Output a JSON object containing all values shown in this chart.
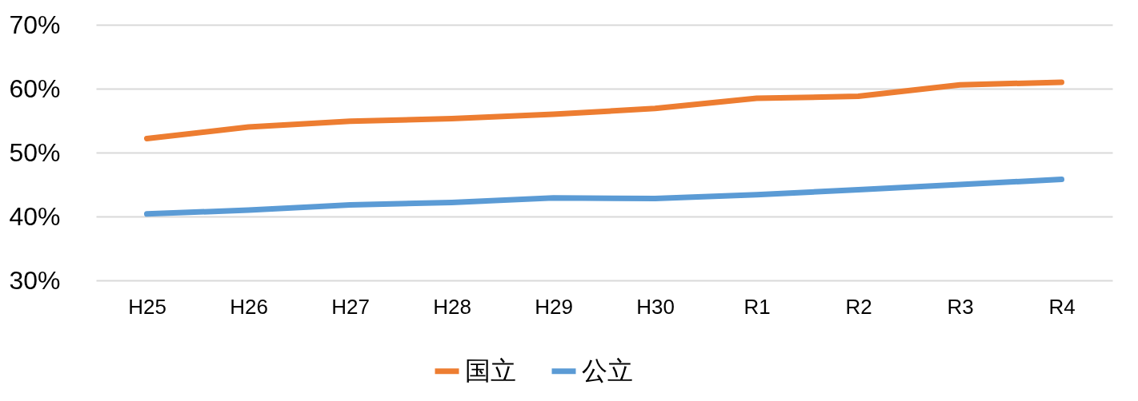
{
  "chart_data": {
    "type": "line",
    "categories": [
      "H25",
      "H26",
      "H27",
      "H28",
      "H29",
      "H30",
      "R1",
      "R2",
      "R3",
      "R4"
    ],
    "series": [
      {
        "name": "国立",
        "color": "#ed7d31",
        "values": [
          52.2,
          54.0,
          54.9,
          55.3,
          56.0,
          56.9,
          58.5,
          58.8,
          60.6,
          61.0
        ]
      },
      {
        "name": "公立",
        "color": "#5b9bd5",
        "values": [
          40.4,
          41.0,
          41.8,
          42.2,
          42.9,
          42.8,
          43.4,
          44.2,
          45.0,
          45.8
        ]
      }
    ],
    "ylim": [
      30,
      70
    ],
    "yticks": [
      {
        "value": 30,
        "label": "30%"
      },
      {
        "value": 40,
        "label": "40%"
      },
      {
        "value": 50,
        "label": "50%"
      },
      {
        "value": 60,
        "label": "60%"
      },
      {
        "value": 70,
        "label": "70%"
      }
    ],
    "grid": "y",
    "legend": "bottom",
    "marker": "none",
    "line_style": "solid"
  }
}
